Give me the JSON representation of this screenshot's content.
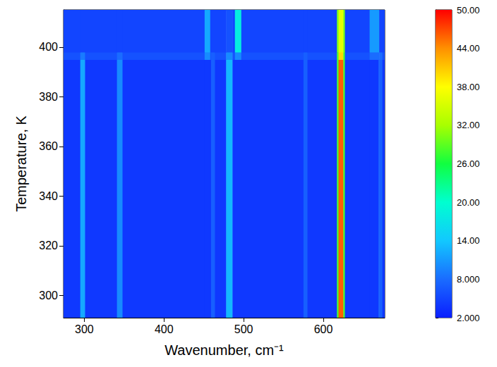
{
  "chart_data": {
    "type": "heatmap",
    "xlabel": "Wavenumber, cm⁻¹",
    "ylabel": "Temperature, K",
    "xlim": [
      274,
      677
    ],
    "xticks": [
      300,
      400,
      500,
      600
    ],
    "ylim": [
      291,
      415
    ],
    "yticks": [
      300,
      320,
      340,
      360,
      380,
      400
    ],
    "x_edges": [
      270,
      295,
      301,
      341,
      348,
      451,
      458,
      459,
      464,
      478,
      486,
      489,
      497,
      575,
      580,
      617,
      619,
      625,
      627,
      658,
      669,
      670,
      674,
      680
    ],
    "y_edges": [
      291,
      395,
      398,
      415
    ],
    "z": [
      [
        4,
        12,
        4,
        10,
        4,
        4,
        4,
        7,
        4,
        13,
        4,
        4,
        4,
        7,
        4,
        28,
        46,
        28,
        4,
        4,
        7,
        7,
        4
      ],
      [
        6,
        9,
        6,
        8,
        6,
        10,
        6,
        7,
        6,
        10,
        6,
        10,
        6,
        7,
        6,
        28,
        40,
        28,
        6,
        8,
        8,
        8,
        6
      ],
      [
        5,
        5,
        5,
        5,
        5,
        12,
        5,
        5,
        5,
        6,
        5,
        18,
        5,
        5,
        5,
        30,
        36,
        30,
        5,
        11,
        11,
        5,
        5
      ]
    ],
    "colorbar": {
      "range": [
        2,
        50
      ],
      "ticks": [
        {
          "value": 2,
          "label": "2.000"
        },
        {
          "value": 8,
          "label": "8.000"
        },
        {
          "value": 14,
          "label": "14.00"
        },
        {
          "value": 20,
          "label": "20.00"
        },
        {
          "value": 26,
          "label": "26.00"
        },
        {
          "value": 32,
          "label": "32.00"
        },
        {
          "value": 38,
          "label": "38.00"
        },
        {
          "value": 44,
          "label": "44.00"
        },
        {
          "value": 50,
          "label": "50.00"
        }
      ]
    }
  }
}
